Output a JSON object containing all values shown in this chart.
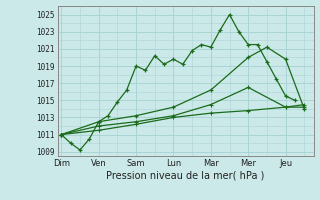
{
  "xlabel": "Pression niveau de la mer( hPa )",
  "background_color": "#cce9e9",
  "grid_color": "#aad4d4",
  "line_color": "#1a6b1a",
  "ylim": [
    1008.5,
    1026.0
  ],
  "yticks": [
    1009,
    1011,
    1013,
    1015,
    1017,
    1019,
    1021,
    1023,
    1025
  ],
  "x_labels": [
    "Dim",
    "Ven",
    "Sam",
    "Lun",
    "Mar",
    "Mer",
    "Jeu"
  ],
  "x_positions": [
    0,
    2,
    4,
    6,
    8,
    10,
    12
  ],
  "xlim": [
    -0.2,
    13.5
  ],
  "line1_x": [
    0,
    0.5,
    1.0,
    1.5,
    2.0,
    2.5,
    3.0,
    3.5,
    4.0,
    4.5,
    5.0,
    5.5,
    6.0,
    6.5,
    7.0,
    7.5,
    8.0,
    8.5,
    9.0,
    9.5,
    10.0,
    10.5,
    11.0,
    11.5,
    12.0,
    12.5
  ],
  "line1_y": [
    1011.0,
    1010.0,
    1009.2,
    1010.5,
    1012.5,
    1013.2,
    1014.8,
    1016.2,
    1019.0,
    1018.5,
    1020.2,
    1019.2,
    1019.8,
    1019.2,
    1020.8,
    1021.5,
    1021.2,
    1023.2,
    1025.0,
    1023.0,
    1021.5,
    1021.5,
    1019.5,
    1017.5,
    1015.5,
    1015.0
  ],
  "line2_x": [
    0,
    2,
    4,
    6,
    8,
    10,
    11,
    12,
    13
  ],
  "line2_y": [
    1011.0,
    1012.5,
    1013.2,
    1014.2,
    1016.2,
    1020.0,
    1021.2,
    1019.8,
    1014.0
  ],
  "line3_x": [
    0,
    2,
    4,
    6,
    8,
    10,
    12,
    13
  ],
  "line3_y": [
    1011.0,
    1011.5,
    1012.2,
    1013.0,
    1013.5,
    1013.8,
    1014.2,
    1014.5
  ],
  "line4_x": [
    0,
    2,
    4,
    6,
    8,
    10,
    12,
    13
  ],
  "line4_y": [
    1011.0,
    1012.0,
    1012.5,
    1013.2,
    1014.5,
    1016.5,
    1014.2,
    1014.2
  ]
}
